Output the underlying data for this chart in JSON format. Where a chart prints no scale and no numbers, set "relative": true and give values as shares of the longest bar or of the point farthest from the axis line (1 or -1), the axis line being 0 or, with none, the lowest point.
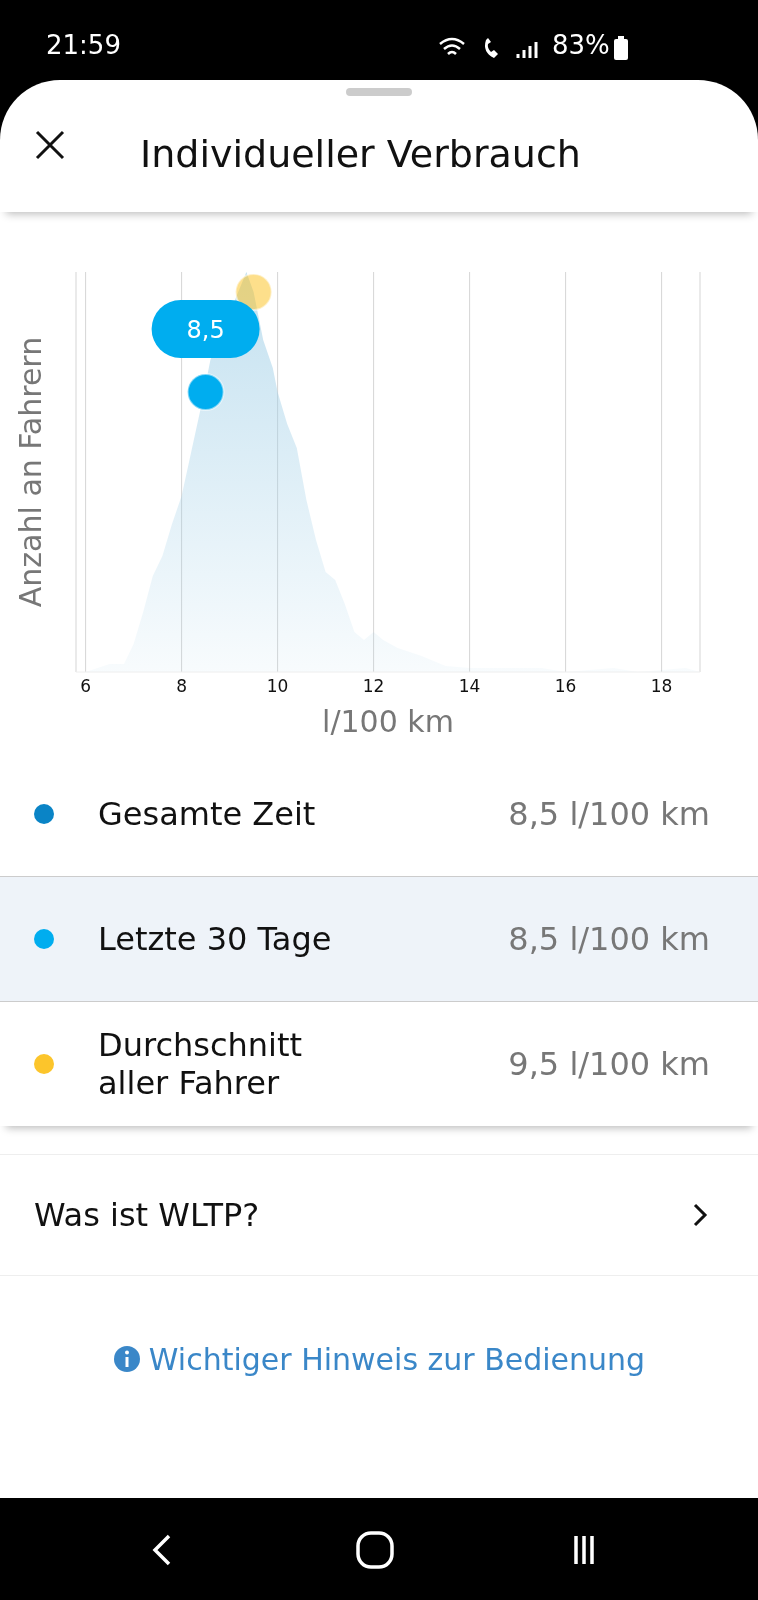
{
  "chart_data": {
    "type": "area",
    "title": "Individueller Verbrauch",
    "xlabel": "l/100 km",
    "ylabel": "Anzahl an Fahrern",
    "relative": true,
    "color": "#9ccde6",
    "x": [
      5.8,
      6.0,
      6.5,
      6.8,
      7.0,
      7.2,
      7.4,
      7.6,
      7.8,
      8.0,
      8.2,
      8.4,
      8.6,
      8.8,
      9.0,
      9.2,
      9.35,
      9.45,
      9.5,
      9.7,
      9.9,
      10.0,
      10.2,
      10.4,
      10.6,
      10.8,
      11.0,
      11.2,
      11.4,
      11.6,
      11.8,
      12.0,
      12.2,
      12.5,
      13.0,
      13.5,
      14.0,
      14.5,
      15.0,
      15.5,
      16.0,
      17.0,
      17.5,
      18.5,
      18.8
    ],
    "values": [
      0.0,
      0.0,
      0.02,
      0.02,
      0.07,
      0.15,
      0.24,
      0.29,
      0.37,
      0.44,
      0.55,
      0.66,
      0.78,
      null,
      null,
      null,
      1.0,
      null,
      0.95,
      0.83,
      0.76,
      0.7,
      0.62,
      0.56,
      0.43,
      0.33,
      0.25,
      0.23,
      0.17,
      0.1,
      0.08,
      0.1,
      0.08,
      0.06,
      0.04,
      0.015,
      0.01,
      0.01,
      0.01,
      0.01,
      0.0,
      0.01,
      0.0,
      0.01,
      0.0
    ],
    "series": [
      {
        "name": "Gesamte Zeit",
        "type": "scatter",
        "color": "#0a84c6",
        "x": [
          null
        ],
        "values": [
          null
        ]
      },
      {
        "name": "Letzte 30 Tage",
        "type": "scatter",
        "color": "#00adef",
        "x": [
          8.5
        ],
        "values": [
          0.7
        ]
      },
      {
        "name": "Durchschnitt aller Fahrer",
        "type": "scatter",
        "color": "#fcc52b",
        "x": [
          9.5
        ],
        "values": [
          0.95
        ]
      }
    ],
    "xlim": [
      5.8,
      18.8
    ],
    "xticks": [
      6,
      8,
      10,
      12,
      14,
      16,
      18
    ],
    "grid": "x",
    "legend": "bottom",
    "annotations": [
      {
        "text": "8,5",
        "x": 8.5,
        "y": 0.7
      },
      "8,5 l/100 km",
      "8,5 l/100 km",
      "9,5 l/100 km",
      "Was ist WLTP?",
      "Wichtiger Hinweis zur Bedienung",
      "21:59",
      "83%"
    ]
  }
}
